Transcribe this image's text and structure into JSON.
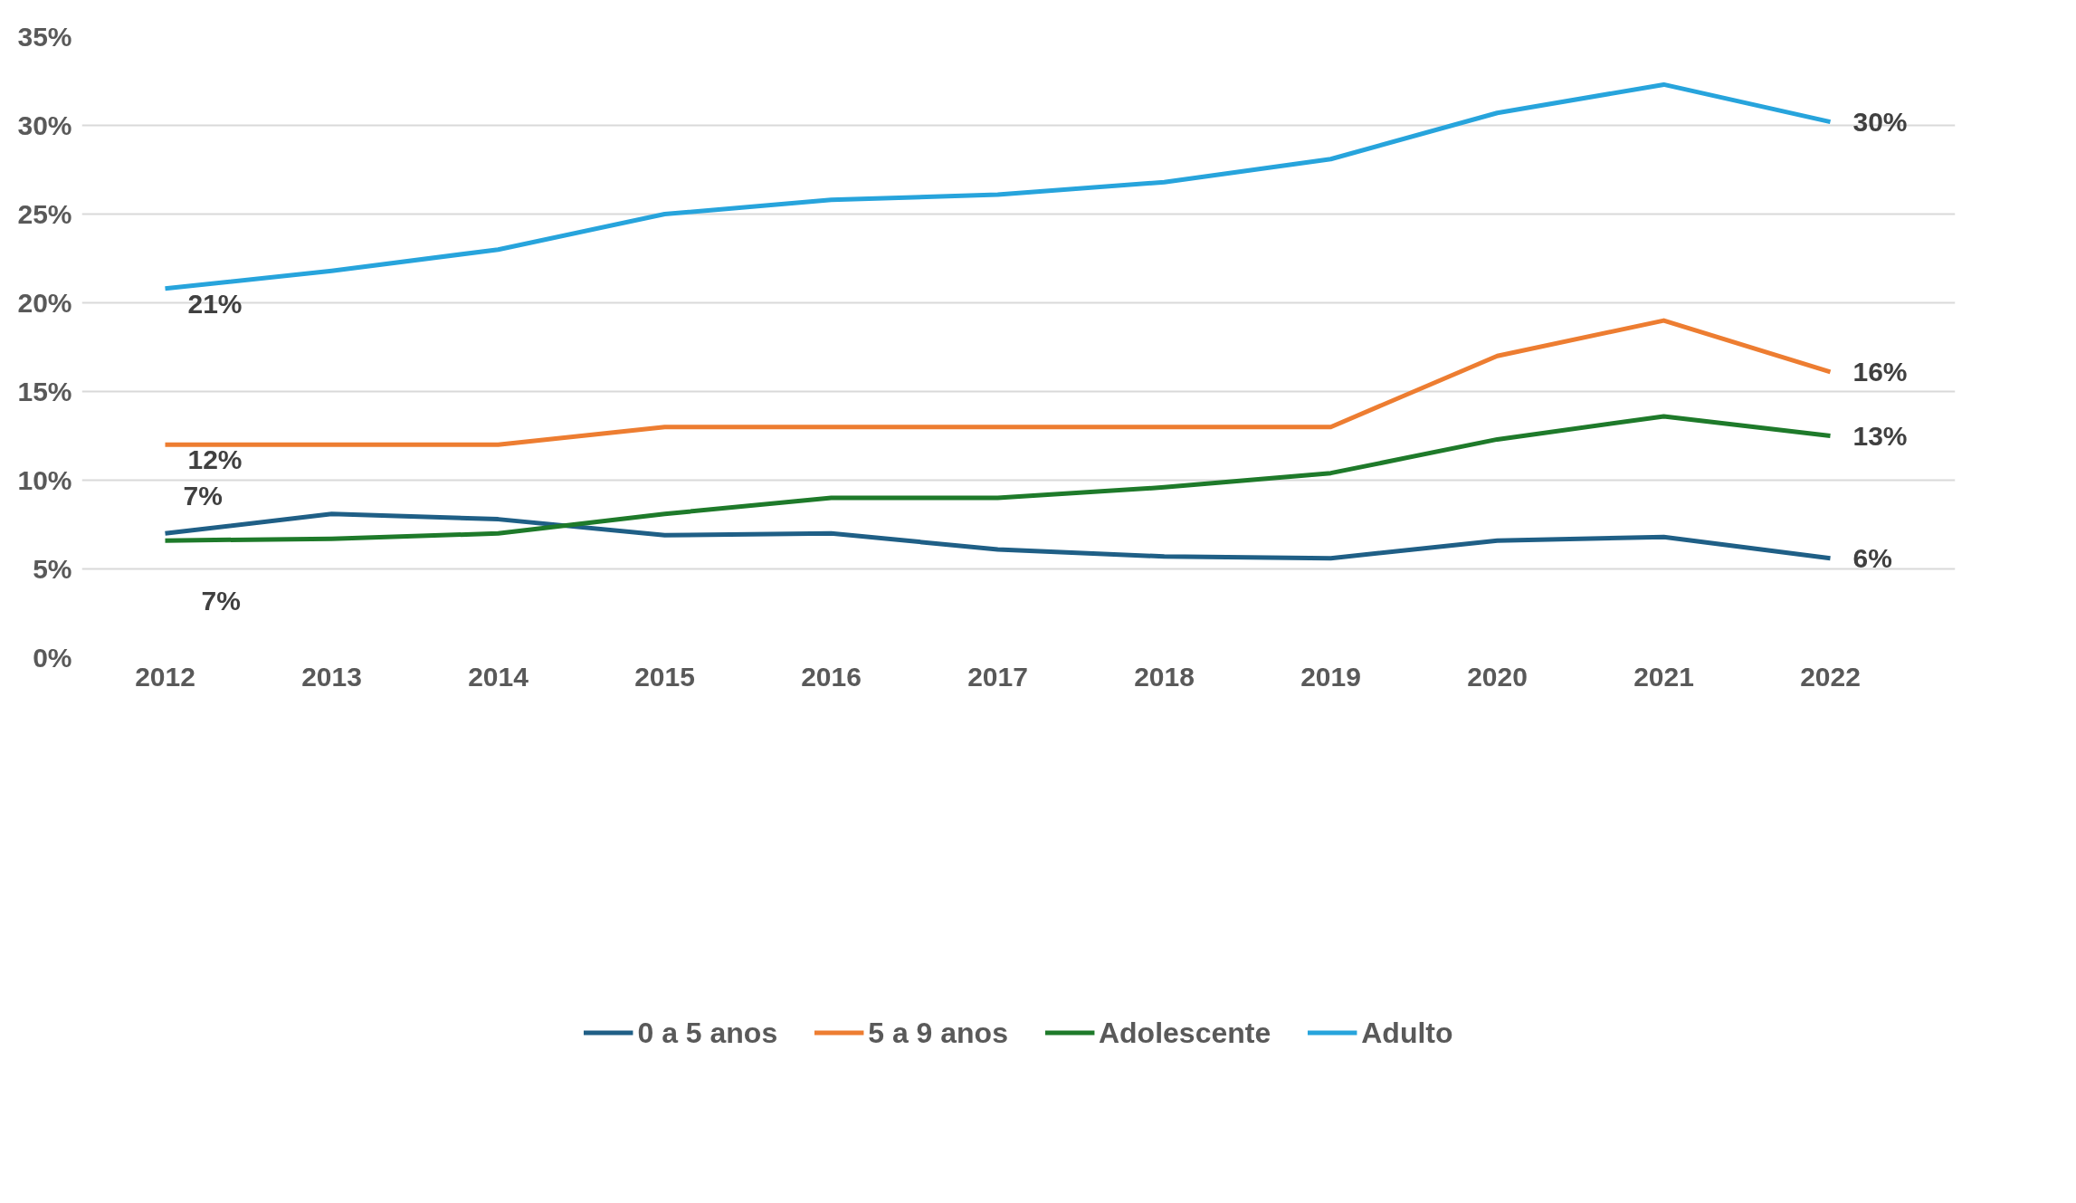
{
  "chart_data": {
    "type": "line",
    "categories": [
      "2012",
      "2013",
      "2014",
      "2015",
      "2016",
      "2017",
      "2018",
      "2019",
      "2020",
      "2021",
      "2022"
    ],
    "series": [
      {
        "name": "0 a 5 anos",
        "color": "#1f5f86",
        "values": [
          7.0,
          8.1,
          7.8,
          6.9,
          7.0,
          6.1,
          5.7,
          5.6,
          6.6,
          6.8,
          5.6
        ],
        "value_labels": [
          "7%",
          null,
          null,
          null,
          null,
          null,
          null,
          null,
          null,
          null,
          "6%"
        ]
      },
      {
        "name": "5 a 9 anos",
        "color": "#ed7d31",
        "values": [
          12,
          12,
          12,
          13,
          13,
          13,
          13,
          13,
          17.0,
          19.0,
          16.1
        ],
        "value_labels": [
          "12%",
          null,
          null,
          null,
          null,
          null,
          null,
          null,
          null,
          null,
          "16%"
        ]
      },
      {
        "name": "Adolescente",
        "color": "#1e7a2a",
        "values": [
          6.6,
          6.7,
          7.0,
          8.1,
          9.0,
          9.0,
          9.6,
          10.4,
          12.3,
          13.6,
          12.5
        ],
        "value_labels": [
          "7%",
          null,
          null,
          null,
          null,
          null,
          null,
          null,
          null,
          null,
          "13%"
        ]
      },
      {
        "name": "Adulto",
        "color": "#27a4dc",
        "values": [
          20.8,
          21.8,
          23.0,
          25.0,
          25.8,
          26.1,
          26.8,
          28.1,
          30.7,
          32.3,
          30.2
        ],
        "value_labels": [
          "21%",
          null,
          null,
          null,
          null,
          null,
          null,
          null,
          null,
          null,
          "30%"
        ]
      }
    ],
    "ylim": [
      0,
      35
    ],
    "yticks": [
      {
        "value": 0,
        "label": "0%"
      },
      {
        "value": 5,
        "label": "5%"
      },
      {
        "value": 10,
        "label": "10%"
      },
      {
        "value": 15,
        "label": "15%"
      },
      {
        "value": 20,
        "label": "20%"
      },
      {
        "value": 25,
        "label": "25%"
      },
      {
        "value": 30,
        "label": "30%"
      },
      {
        "value": 35,
        "label": "35%"
      }
    ],
    "grid": "y",
    "legend": "bottom",
    "marker": "none",
    "line_style": "solid"
  }
}
